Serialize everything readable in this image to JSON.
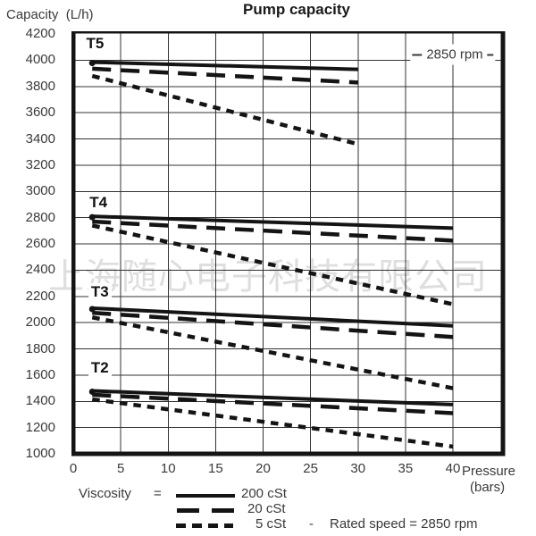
{
  "watermark": {
    "text": "上海随心电子科技有限公司"
  },
  "axis": {
    "pressure_line1": "Pressure",
    "pressure_line2": "(bars)"
  },
  "legend": {
    "prefix": "Viscosity",
    "equals": "=",
    "items": [
      {
        "label": "200 cSt",
        "style": "solid"
      },
      {
        "label": "20 cSt",
        "style": "dashed"
      },
      {
        "label": "5 cSt",
        "style": "dotted"
      }
    ],
    "separator": "-",
    "rated_speed": "Rated speed = 2850 rpm"
  },
  "chart_data": {
    "type": "line",
    "title": "Pump capacity",
    "ylabel": "Capacity  (L/h)",
    "xlabel": "Pressure (bars)",
    "annotation": "2850 rpm",
    "grid": true,
    "xlim": [
      0,
      45.5
    ],
    "ylim": [
      1000,
      4250
    ],
    "x_ticks": [
      0,
      5,
      10,
      15,
      20,
      25,
      30,
      35,
      40
    ],
    "y_ticks": [
      4200,
      4000,
      3800,
      3600,
      3400,
      3200,
      3000,
      2800,
      2600,
      2400,
      2200,
      2000,
      1800,
      1600,
      1400,
      1200,
      1000
    ],
    "line_color": "#141414",
    "legend_entries": [
      "200 cSt",
      "20 cSt",
      "5 cSt"
    ],
    "rated_speed_note": "Rated speed = 2850 rpm",
    "groups": [
      {
        "label": "T5",
        "label_at": [
          2.3,
          4125
        ],
        "series": [
          {
            "name": "200 cSt",
            "style": "solid",
            "points": [
              [
                2,
                3985
              ],
              [
                30,
                3930
              ]
            ]
          },
          {
            "name": "20 cSt",
            "style": "dashed",
            "points": [
              [
                2,
                3935
              ],
              [
                30,
                3830
              ]
            ]
          },
          {
            "name": "5 cSt",
            "style": "dotted",
            "points": [
              [
                2,
                3880
              ],
              [
                30,
                3360
              ]
            ]
          }
        ]
      },
      {
        "label": "T4",
        "label_at": [
          2.65,
          2910
        ],
        "series": [
          {
            "name": "200 cSt",
            "style": "solid",
            "points": [
              [
                2,
                2810
              ],
              [
                40,
                2720
              ]
            ]
          },
          {
            "name": "20 cSt",
            "style": "dashed",
            "points": [
              [
                2,
                2770
              ],
              [
                40,
                2625
              ]
            ]
          },
          {
            "name": "5 cSt",
            "style": "dotted",
            "points": [
              [
                2,
                2740
              ],
              [
                40,
                2140
              ]
            ]
          }
        ]
      },
      {
        "label": "T3",
        "label_at": [
          2.8,
          2230
        ],
        "series": [
          {
            "name": "200 cSt",
            "style": "solid",
            "points": [
              [
                2,
                2110
              ],
              [
                40,
                1975
              ]
            ]
          },
          {
            "name": "20 cSt",
            "style": "dashed",
            "points": [
              [
                2,
                2075
              ],
              [
                40,
                1890
              ]
            ]
          },
          {
            "name": "5 cSt",
            "style": "dotted",
            "points": [
              [
                2,
                2040
              ],
              [
                40,
                1500
              ]
            ]
          }
        ]
      },
      {
        "label": "T2",
        "label_at": [
          2.8,
          1655
        ],
        "series": [
          {
            "name": "200 cSt",
            "style": "solid",
            "points": [
              [
                2,
                1480
              ],
              [
                40,
                1375
              ]
            ]
          },
          {
            "name": "20 cSt",
            "style": "dashed",
            "points": [
              [
                2,
                1450
              ],
              [
                40,
                1310
              ]
            ]
          },
          {
            "name": "5 cSt",
            "style": "dotted",
            "points": [
              [
                2,
                1415
              ],
              [
                40,
                1055
              ]
            ]
          }
        ]
      }
    ]
  }
}
